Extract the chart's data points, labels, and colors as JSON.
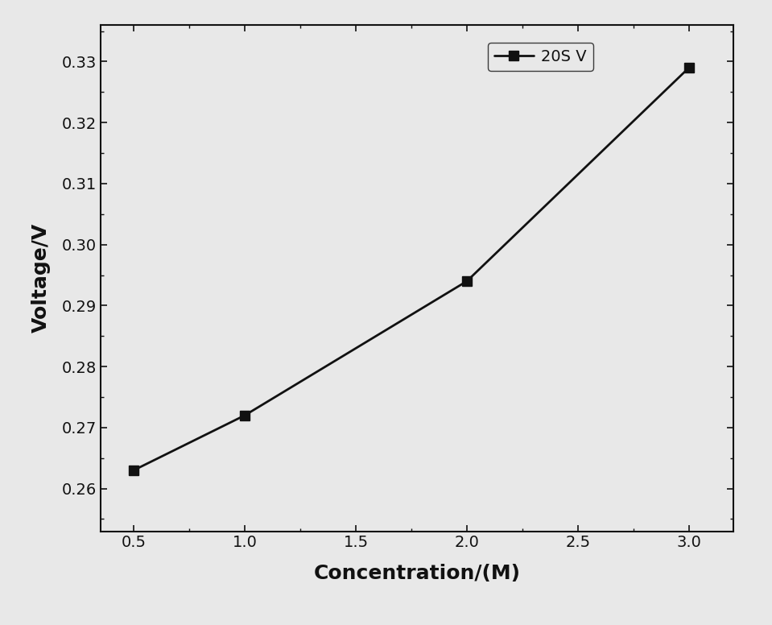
{
  "x": [
    0.5,
    1.0,
    2.0,
    3.0
  ],
  "y": [
    0.263,
    0.272,
    0.294,
    0.329
  ],
  "xlabel": "Concentration/(M)",
  "ylabel": "Voltage/V",
  "legend_label": "20S V",
  "xlim": [
    0.35,
    3.2
  ],
  "ylim": [
    0.253,
    0.336
  ],
  "xticks": [
    0.5,
    1.0,
    1.5,
    2.0,
    2.5,
    3.0
  ],
  "yticks": [
    0.26,
    0.27,
    0.28,
    0.29,
    0.3,
    0.31,
    0.32,
    0.33
  ],
  "line_color": "#111111",
  "marker": "s",
  "marker_size": 8,
  "line_width": 2.0,
  "background_color": "#e8e8e8",
  "axes_facecolor": "#e8e8e8",
  "axes_color": "#111111",
  "label_fontsize": 18,
  "tick_fontsize": 14,
  "legend_fontsize": 14
}
